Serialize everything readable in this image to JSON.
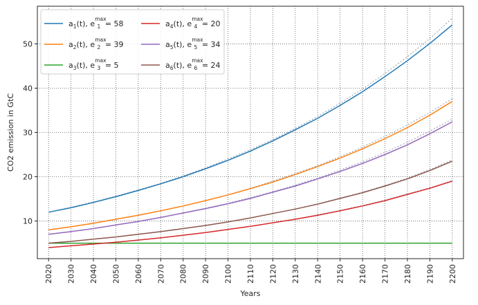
{
  "chart_data": {
    "type": "line",
    "xlabel": "Years",
    "ylabel": "CO2 emission in GtC",
    "xlim": [
      2015,
      2205
    ],
    "ylim": [
      1.5,
      58.5
    ],
    "x_ticks": [
      2020,
      2030,
      2040,
      2050,
      2060,
      2070,
      2080,
      2090,
      2100,
      2110,
      2120,
      2130,
      2140,
      2150,
      2160,
      2170,
      2180,
      2190,
      2200
    ],
    "y_ticks": [
      10,
      20,
      30,
      40,
      50
    ],
    "grid": true,
    "legend_position": "upper-left",
    "legend_columns": 2,
    "x": [
      2020,
      2030,
      2040,
      2050,
      2060,
      2070,
      2080,
      2090,
      2100,
      2110,
      2120,
      2130,
      2140,
      2150,
      2160,
      2170,
      2180,
      2190,
      2200
    ],
    "series": [
      {
        "name": "a1(t), e1max = 58",
        "label_parts": {
          "base": "a",
          "idx": "1",
          "emax": "58"
        },
        "color": "#1f77b4",
        "values": [
          12.0,
          13.0,
          14.2,
          15.5,
          16.9,
          18.4,
          20.0,
          21.8,
          23.7,
          25.8,
          28.1,
          30.6,
          33.2,
          36.1,
          39.2,
          42.6,
          46.2,
          50.1,
          54.3
        ],
        "trend": [
          12.0,
          13.1,
          14.3,
          15.6,
          17.0,
          18.5,
          20.2,
          22.0,
          24.0,
          26.1,
          28.4,
          30.9,
          33.6,
          36.6,
          39.8,
          43.3,
          47.1,
          51.2,
          55.8
        ]
      },
      {
        "name": "a2(t), e2max = 39",
        "label_parts": {
          "base": "a",
          "idx": "2",
          "emax": "39"
        },
        "color": "#ff7f0e",
        "values": [
          8.0,
          8.7,
          9.5,
          10.4,
          11.3,
          12.3,
          13.4,
          14.6,
          15.9,
          17.3,
          18.8,
          20.5,
          22.3,
          24.2,
          26.3,
          28.6,
          31.1,
          33.9,
          37.0
        ],
        "trend": [
          8.0,
          8.7,
          9.5,
          10.4,
          11.3,
          12.3,
          13.4,
          14.6,
          15.9,
          17.4,
          19.0,
          20.7,
          22.5,
          24.5,
          26.7,
          29.1,
          31.7,
          34.5,
          37.6
        ]
      },
      {
        "name": "a3(t), e3max = 5",
        "label_parts": {
          "base": "a",
          "idx": "3",
          "emax": "5"
        },
        "color": "#2ca02c",
        "values": [
          5.0,
          5.0,
          5.0,
          5.0,
          5.0,
          5.0,
          5.0,
          5.0,
          5.0,
          5.0,
          5.0,
          5.0,
          5.0,
          5.0,
          5.0,
          5.0,
          5.0,
          5.0,
          5.0
        ],
        "trend": null
      },
      {
        "name": "a4(t), e4max = 20",
        "label_parts": {
          "base": "a",
          "idx": "4",
          "emax": "20"
        },
        "color": "#d62728",
        "values": [
          4.0,
          4.4,
          4.8,
          5.2,
          5.7,
          6.2,
          6.8,
          7.4,
          8.1,
          8.8,
          9.6,
          10.4,
          11.3,
          12.3,
          13.4,
          14.6,
          16.0,
          17.4,
          19.0
        ],
        "trend": [
          4.0,
          4.4,
          4.8,
          5.2,
          5.7,
          6.2,
          6.8,
          7.4,
          8.1,
          8.8,
          9.6,
          10.4,
          11.4,
          12.4,
          13.5,
          14.7,
          16.1,
          17.5,
          19.1
        ]
      },
      {
        "name": "a5(t), e5max = 34",
        "label_parts": {
          "base": "a",
          "idx": "5",
          "emax": "34"
        },
        "color": "#9467bd",
        "values": [
          7.0,
          7.6,
          8.3,
          9.1,
          9.9,
          10.8,
          11.8,
          12.8,
          13.9,
          15.1,
          16.5,
          17.9,
          19.5,
          21.2,
          23.0,
          25.0,
          27.2,
          29.7,
          32.4
        ],
        "trend": [
          7.0,
          7.6,
          8.3,
          9.1,
          9.9,
          10.8,
          11.8,
          12.9,
          14.0,
          15.3,
          16.6,
          18.1,
          19.7,
          21.5,
          23.4,
          25.5,
          27.8,
          30.3,
          33.0
        ]
      },
      {
        "name": "a6(t), e6max = 24",
        "label_parts": {
          "base": "a",
          "idx": "6",
          "emax": "24"
        },
        "color": "#8c564b",
        "values": [
          5.0,
          5.4,
          5.9,
          6.4,
          7.0,
          7.6,
          8.3,
          9.0,
          9.8,
          10.7,
          11.7,
          12.7,
          13.8,
          15.1,
          16.4,
          17.9,
          19.5,
          21.4,
          23.5
        ],
        "trend": [
          5.0,
          5.4,
          5.9,
          6.4,
          7.0,
          7.6,
          8.3,
          9.0,
          9.8,
          10.7,
          11.7,
          12.7,
          13.9,
          15.2,
          16.5,
          18.0,
          19.7,
          21.6,
          23.8
        ]
      }
    ],
    "trend_style": {
      "color": "#9aa9b8",
      "dash": "2,2.5"
    }
  }
}
